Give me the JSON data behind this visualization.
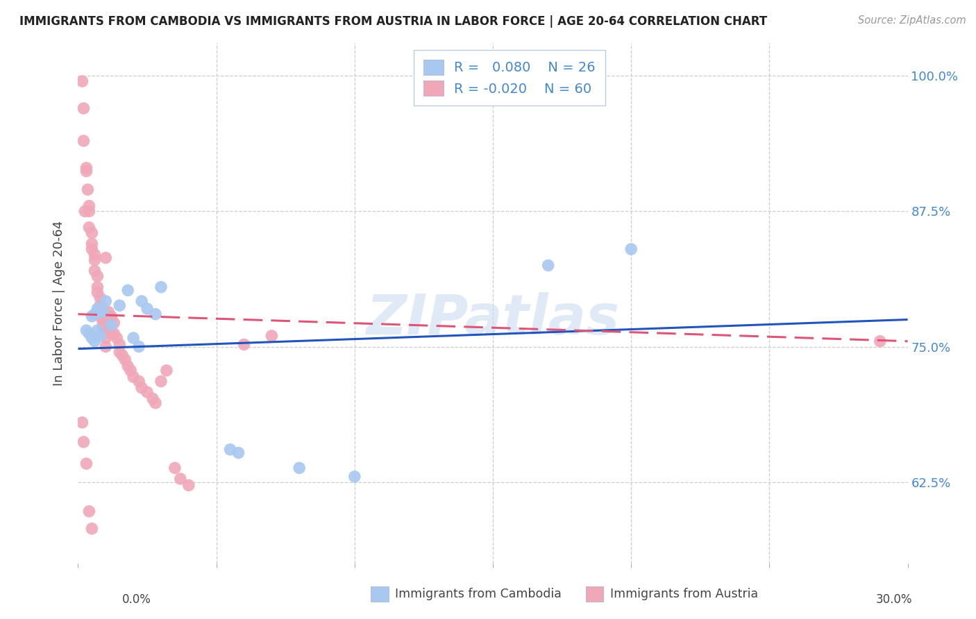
{
  "title": "IMMIGRANTS FROM CAMBODIA VS IMMIGRANTS FROM AUSTRIA IN LABOR FORCE | AGE 20-64 CORRELATION CHART",
  "source": "Source: ZipAtlas.com",
  "ylabel": "In Labor Force | Age 20-64",
  "ytick_values": [
    62.5,
    75.0,
    87.5,
    100.0
  ],
  "ytick_labels": [
    "62.5%",
    "75.0%",
    "87.5%",
    "100.0%"
  ],
  "xmin": 0.0,
  "xmax": 30.0,
  "ymin": 55.0,
  "ymax": 103.0,
  "legend_r_cambodia": "0.080",
  "legend_n_cambodia": "26",
  "legend_r_austria": "-0.020",
  "legend_n_austria": "60",
  "color_cambodia": "#a8c8f0",
  "color_austria": "#f0a8b8",
  "line_color_cambodia": "#2255bb",
  "line_color_austria": "#dd5577",
  "watermark": "ZIPatlas",
  "watermark_color": "#c8d8f0",
  "cam_line_y0": 74.8,
  "cam_line_y1": 77.5,
  "aut_line_y0": 78.0,
  "aut_line_y1": 75.5,
  "cambodia_points": [
    [
      0.3,
      76.5
    ],
    [
      0.4,
      76.2
    ],
    [
      0.5,
      75.8
    ],
    [
      0.5,
      77.8
    ],
    [
      0.6,
      75.5
    ],
    [
      0.6,
      78.0
    ],
    [
      0.7,
      76.5
    ],
    [
      0.7,
      78.5
    ],
    [
      0.8,
      76.0
    ],
    [
      0.9,
      78.2
    ],
    [
      1.0,
      79.2
    ],
    [
      1.2,
      77.0
    ],
    [
      1.5,
      78.8
    ],
    [
      1.8,
      80.2
    ],
    [
      2.0,
      75.8
    ],
    [
      2.2,
      75.0
    ],
    [
      2.3,
      79.2
    ],
    [
      2.5,
      78.5
    ],
    [
      2.8,
      78.0
    ],
    [
      3.0,
      80.5
    ],
    [
      5.5,
      65.5
    ],
    [
      5.8,
      65.2
    ],
    [
      8.0,
      63.8
    ],
    [
      10.0,
      63.0
    ],
    [
      17.0,
      82.5
    ],
    [
      20.0,
      84.0
    ]
  ],
  "austria_points": [
    [
      0.15,
      99.5
    ],
    [
      0.2,
      97.0
    ],
    [
      0.3,
      91.5
    ],
    [
      0.3,
      91.2
    ],
    [
      0.35,
      89.5
    ],
    [
      0.4,
      88.0
    ],
    [
      0.4,
      87.5
    ],
    [
      0.4,
      86.0
    ],
    [
      0.5,
      85.5
    ],
    [
      0.5,
      84.5
    ],
    [
      0.5,
      84.0
    ],
    [
      0.6,
      83.5
    ],
    [
      0.6,
      83.0
    ],
    [
      0.6,
      82.0
    ],
    [
      0.7,
      81.5
    ],
    [
      0.7,
      80.5
    ],
    [
      0.7,
      80.0
    ],
    [
      0.8,
      79.5
    ],
    [
      0.8,
      78.8
    ],
    [
      0.8,
      77.8
    ],
    [
      0.9,
      77.2
    ],
    [
      0.9,
      76.8
    ],
    [
      1.0,
      76.5
    ],
    [
      1.0,
      75.8
    ],
    [
      1.0,
      75.0
    ],
    [
      1.1,
      78.2
    ],
    [
      1.1,
      77.0
    ],
    [
      1.2,
      77.8
    ],
    [
      1.2,
      76.2
    ],
    [
      1.3,
      77.2
    ],
    [
      1.3,
      76.2
    ],
    [
      1.4,
      75.8
    ],
    [
      1.5,
      75.2
    ],
    [
      1.5,
      74.5
    ],
    [
      1.6,
      74.2
    ],
    [
      1.7,
      73.8
    ],
    [
      1.8,
      73.2
    ],
    [
      1.9,
      72.8
    ],
    [
      2.0,
      72.2
    ],
    [
      2.2,
      71.8
    ],
    [
      2.3,
      71.2
    ],
    [
      2.5,
      70.8
    ],
    [
      2.7,
      70.2
    ],
    [
      2.8,
      69.8
    ],
    [
      3.0,
      71.8
    ],
    [
      3.2,
      72.8
    ],
    [
      3.5,
      63.8
    ],
    [
      3.7,
      62.8
    ],
    [
      4.0,
      62.2
    ],
    [
      0.2,
      94.0
    ],
    [
      0.25,
      87.5
    ],
    [
      6.0,
      75.2
    ],
    [
      7.0,
      76.0
    ],
    [
      0.15,
      68.0
    ],
    [
      0.2,
      66.2
    ],
    [
      0.3,
      64.2
    ],
    [
      0.4,
      59.8
    ],
    [
      0.5,
      58.2
    ],
    [
      29.0,
      75.5
    ],
    [
      1.0,
      83.2
    ]
  ]
}
